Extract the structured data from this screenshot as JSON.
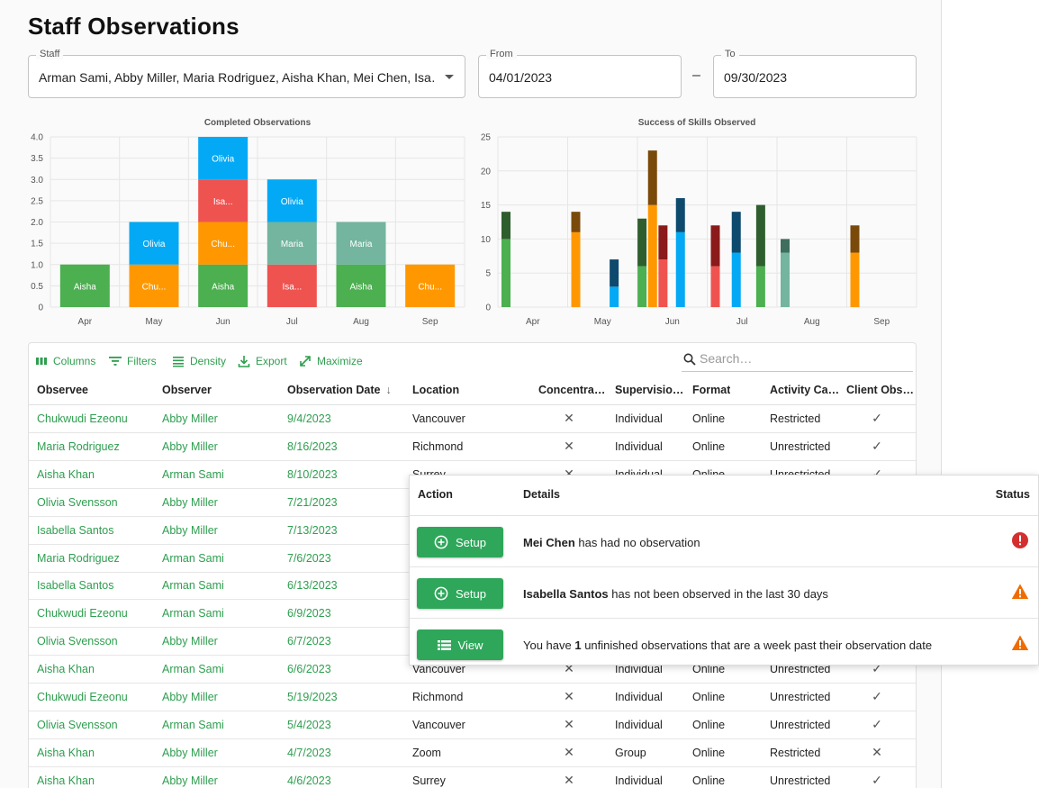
{
  "page": {
    "title": "Staff Observations"
  },
  "filters": {
    "staff_label": "Staff",
    "staff_value": "Arman Sami, Abby Miller, Maria Rodriguez, Aisha Khan, Mei Chen, Isa…",
    "from_label": "From",
    "from_value": "04/01/2023",
    "range_separator": "–",
    "to_label": "To",
    "to_value": "09/30/2023"
  },
  "colors": {
    "accent": "#2e9e4f",
    "Aisha": "#4caf50",
    "Chu": "#ff9800",
    "Olivia": "#03a9f4",
    "Isa": "#ef5350",
    "Maria": "#73b59e"
  },
  "chart_data": [
    {
      "type": "bar",
      "stacked": true,
      "title": "Completed Observations",
      "categories": [
        "Apr",
        "May",
        "Jun",
        "Jul",
        "Aug",
        "Sep"
      ],
      "ylim": [
        0,
        4
      ],
      "yticks": [
        "0",
        "0.5",
        "1.0",
        "1.5",
        "2.0",
        "2.5",
        "3.0",
        "3.5",
        "4.0"
      ],
      "grid": true,
      "segments": [
        [
          {
            "label": "Aisha",
            "value": 1,
            "color": "#4caf50"
          }
        ],
        [
          {
            "label": "Chu...",
            "value": 1,
            "color": "#ff9800"
          },
          {
            "label": "Olivia",
            "value": 1,
            "color": "#03a9f4"
          }
        ],
        [
          {
            "label": "Aisha",
            "value": 1,
            "color": "#4caf50"
          },
          {
            "label": "Chu...",
            "value": 1,
            "color": "#ff9800"
          },
          {
            "label": "Isa...",
            "value": 1,
            "color": "#ef5350"
          },
          {
            "label": "Olivia",
            "value": 1,
            "color": "#03a9f4"
          }
        ],
        [
          {
            "label": "Isa...",
            "value": 1,
            "color": "#ef5350"
          },
          {
            "label": "Maria",
            "value": 1,
            "color": "#73b59e"
          },
          {
            "label": "Olivia",
            "value": 1,
            "color": "#03a9f4"
          }
        ],
        [
          {
            "label": "Aisha",
            "value": 1,
            "color": "#4caf50"
          },
          {
            "label": "Maria",
            "value": 1,
            "color": "#73b59e"
          }
        ],
        [
          {
            "label": "Chu...",
            "value": 1,
            "color": "#ff9800"
          }
        ]
      ]
    },
    {
      "type": "bar",
      "stacked": true,
      "title": "Success of Skills Observed",
      "categories": [
        "Apr",
        "May",
        "Jun",
        "Jul",
        "Aug",
        "Sep"
      ],
      "ylim": [
        0,
        25
      ],
      "yticks": [
        "0",
        "5",
        "10",
        "15",
        "20",
        "25"
      ],
      "grid": true,
      "bars": [
        {
          "month": 0,
          "base": 10,
          "top": 4,
          "color": "#4caf50",
          "top_color": "#2e5e2e"
        },
        {
          "month": 1,
          "base": 11,
          "top": 3,
          "color": "#ff9800",
          "top_color": "#7a4a0a"
        },
        {
          "month": 1.55,
          "base": 3,
          "top": 4,
          "color": "#03a9f4",
          "top_color": "#0d4a6e"
        },
        {
          "month": 1.95,
          "base": 6,
          "top": 7,
          "color": "#4caf50",
          "top_color": "#2e5e2e"
        },
        {
          "month": 2.1,
          "base": 15,
          "top": 8,
          "color": "#ff9800",
          "top_color": "#7a4a0a"
        },
        {
          "month": 2.25,
          "base": 7,
          "top": 5,
          "color": "#ef5350",
          "top_color": "#8b1a1a"
        },
        {
          "month": 2.5,
          "base": 11,
          "top": 5,
          "color": "#03a9f4",
          "top_color": "#0d4a6e"
        },
        {
          "month": 3,
          "base": 6,
          "top": 6,
          "color": "#ef5350",
          "top_color": "#8b1a1a"
        },
        {
          "month": 3.3,
          "base": 8,
          "top": 6,
          "color": "#03a9f4",
          "top_color": "#0d4a6e"
        },
        {
          "month": 3.65,
          "base": 6,
          "top": 9,
          "color": "#4caf50",
          "top_color": "#2e5e2e"
        },
        {
          "month": 4,
          "base": 8,
          "top": 2,
          "color": "#73b59e",
          "top_color": "#3f6e5f"
        },
        {
          "month": 5,
          "base": 8,
          "top": 4,
          "color": "#ff9800",
          "top_color": "#7a4a0a"
        }
      ]
    }
  ],
  "grid": {
    "toolbar": {
      "columns": "Columns",
      "filters": "Filters",
      "density": "Density",
      "export": "Export",
      "maximize": "Maximize"
    },
    "search_placeholder": "Search…",
    "headers": [
      "Observee",
      "Observer",
      "Observation Date",
      "Location",
      "Concentra…",
      "Supervisio…",
      "Format",
      "Activity Ca…",
      "Client Obs…"
    ],
    "rows": [
      [
        "Chukwudi Ezeonu",
        "Abby Miller",
        "9/4/2023",
        "Vancouver",
        "✕",
        "Individual",
        "Online",
        "Restricted",
        "✓"
      ],
      [
        "Maria Rodriguez",
        "Abby Miller",
        "8/16/2023",
        "Richmond",
        "✕",
        "Individual",
        "Online",
        "Unrestricted",
        "✓"
      ],
      [
        "Aisha Khan",
        "Arman Sami",
        "8/10/2023",
        "Surrey",
        "✕",
        "Individual",
        "Online",
        "Unrestricted",
        "✓"
      ],
      [
        "Olivia Svensson",
        "Abby Miller",
        "7/21/2023",
        "",
        "",
        "",
        "",
        "",
        ""
      ],
      [
        "Isabella Santos",
        "Abby Miller",
        "7/13/2023",
        "",
        "",
        "",
        "",
        "",
        ""
      ],
      [
        "Maria Rodriguez",
        "Arman Sami",
        "7/6/2023",
        "",
        "",
        "",
        "",
        "",
        ""
      ],
      [
        "Isabella Santos",
        "Arman Sami",
        "6/13/2023",
        "",
        "",
        "",
        "",
        "",
        ""
      ],
      [
        "Chukwudi Ezeonu",
        "Arman Sami",
        "6/9/2023",
        "",
        "",
        "",
        "",
        "",
        ""
      ],
      [
        "Olivia Svensson",
        "Abby Miller",
        "6/7/2023",
        "",
        "",
        "",
        "",
        "",
        ""
      ],
      [
        "Aisha Khan",
        "Arman Sami",
        "6/6/2023",
        "Vancouver",
        "✕",
        "Individual",
        "Online",
        "Unrestricted",
        "✓"
      ],
      [
        "Chukwudi Ezeonu",
        "Abby Miller",
        "5/19/2023",
        "Richmond",
        "✕",
        "Individual",
        "Online",
        "Unrestricted",
        "✓"
      ],
      [
        "Olivia Svensson",
        "Arman Sami",
        "5/4/2023",
        "Vancouver",
        "✕",
        "Individual",
        "Online",
        "Unrestricted",
        "✓"
      ],
      [
        "Aisha Khan",
        "Abby Miller",
        "4/7/2023",
        "Zoom",
        "✕",
        "Group",
        "Online",
        "Restricted",
        "✕"
      ],
      [
        "Aisha Khan",
        "Abby Miller",
        "4/6/2023",
        "Surrey",
        "✕",
        "Individual",
        "Online",
        "Unrestricted",
        "✓"
      ]
    ]
  },
  "popup": {
    "headers": {
      "action": "Action",
      "details": "Details",
      "status": "Status"
    },
    "rows": [
      {
        "button": "Setup",
        "icon": "plus-circle-icon",
        "bold": "Mei Chen",
        "text": " has had no observation",
        "status": "error-icon"
      },
      {
        "button": "Setup",
        "icon": "plus-circle-icon",
        "bold": "Isabella Santos",
        "text": " has not been observed in the last 30 days",
        "status": "warning-icon"
      },
      {
        "button": "View",
        "icon": "list-icon",
        "pre": "You have ",
        "bold": "1",
        "text": " unfinished observations that are a week past their observation date",
        "status": "warning-icon"
      }
    ]
  }
}
